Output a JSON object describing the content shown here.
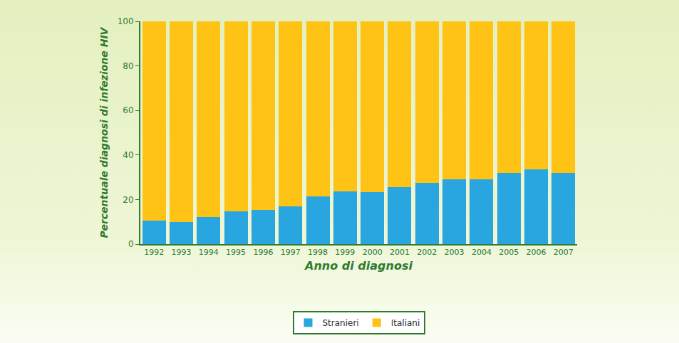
{
  "chart_data": {
    "type": "bar",
    "stacked": true,
    "x_label": "Anno di diagnosi",
    "y_label": "Percentuale diagnosi di infezione HIV",
    "categories": [
      "1992",
      "1993",
      "1994",
      "1995",
      "1996",
      "1997",
      "1998",
      "1999",
      "2000",
      "2001",
      "2002",
      "2003",
      "2004",
      "2005",
      "2006",
      "2007"
    ],
    "series": [
      {
        "name": "Stranieri",
        "color": "#29a6df",
        "values": [
          10.5,
          10,
          12,
          14.7,
          15.3,
          17,
          21.3,
          23.7,
          23.4,
          25.5,
          27.5,
          29.2,
          29,
          32,
          33.6,
          32
        ]
      },
      {
        "name": "Italiani",
        "color": "#ffc316",
        "values": [
          89.5,
          90,
          88,
          85.3,
          84.7,
          83,
          78.7,
          76.3,
          76.6,
          74.5,
          72.5,
          70.8,
          71,
          68,
          66.4,
          68
        ]
      }
    ],
    "ylim": [
      0,
      100
    ],
    "yticks": [
      0,
      20,
      40,
      60,
      80,
      100
    ],
    "grid": false,
    "legend": "bottom"
  }
}
